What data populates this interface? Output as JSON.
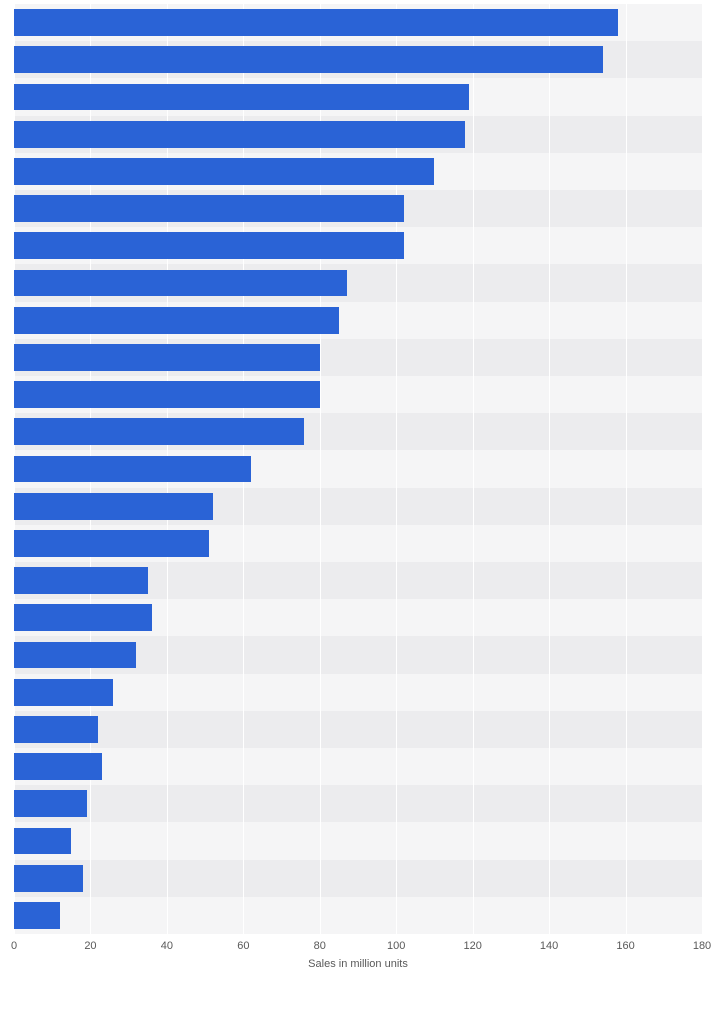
{
  "chart": {
    "type": "bar-horizontal",
    "xlabel": "Sales in million units",
    "xlim_min": 0,
    "xlim_max": 180,
    "xtick_step": 20,
    "xticks": [
      0,
      20,
      40,
      60,
      80,
      100,
      120,
      140,
      160,
      180
    ],
    "values": [
      158,
      154,
      119,
      118,
      110,
      102,
      102,
      87,
      85,
      80,
      80,
      76,
      62,
      52,
      51,
      35,
      36,
      32,
      26,
      22,
      23,
      19,
      15,
      18,
      12
    ],
    "bar_color": "#2a63d6",
    "stripe_color_a": "#f5f5f6",
    "stripe_color_b": "#ececee",
    "gridline_color": "#ffffff",
    "label_color": "#595959",
    "label_fontsize": 11,
    "bar_height_ratio": 0.72
  }
}
